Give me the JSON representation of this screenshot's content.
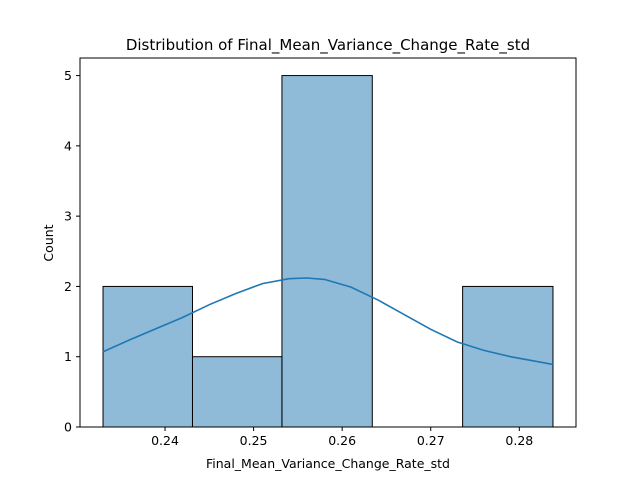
{
  "chart_data": {
    "type": "histogram",
    "title": "Distribution of Final_Mean_Variance_Change_Rate_std",
    "xlabel": "Final_Mean_Variance_Change_Rate_std",
    "ylabel": "Count",
    "xlim": [
      0.2304,
      0.2864
    ],
    "ylim": [
      0,
      5.25
    ],
    "xticks": [
      0.24,
      0.25,
      0.26,
      0.27,
      0.28
    ],
    "xtick_labels": [
      "0.24",
      "0.25",
      "0.26",
      "0.27",
      "0.28"
    ],
    "yticks": [
      0,
      1,
      2,
      3,
      4,
      5
    ],
    "ytick_labels": [
      "0",
      "1",
      "2",
      "3",
      "4",
      "5"
    ],
    "bins": [
      {
        "x0": 0.233,
        "x1": 0.2431,
        "count": 2
      },
      {
        "x0": 0.2431,
        "x1": 0.2532,
        "count": 1
      },
      {
        "x0": 0.2532,
        "x1": 0.2634,
        "count": 5
      },
      {
        "x0": 0.2634,
        "x1": 0.2736,
        "count": 0
      },
      {
        "x0": 0.2736,
        "x1": 0.2838,
        "count": 2
      }
    ],
    "kde": {
      "x": [
        0.233,
        0.236,
        0.239,
        0.242,
        0.245,
        0.248,
        0.251,
        0.254,
        0.256,
        0.258,
        0.261,
        0.264,
        0.267,
        0.27,
        0.273,
        0.276,
        0.279,
        0.2838
      ],
      "y": [
        1.07,
        1.24,
        1.4,
        1.56,
        1.74,
        1.9,
        2.04,
        2.11,
        2.12,
        2.1,
        1.99,
        1.81,
        1.6,
        1.39,
        1.21,
        1.09,
        1.0,
        0.89
      ]
    },
    "bar_color": "#1f77b4",
    "bar_alpha": 0.5,
    "kde_color": "#1f77b4",
    "grid": false
  }
}
